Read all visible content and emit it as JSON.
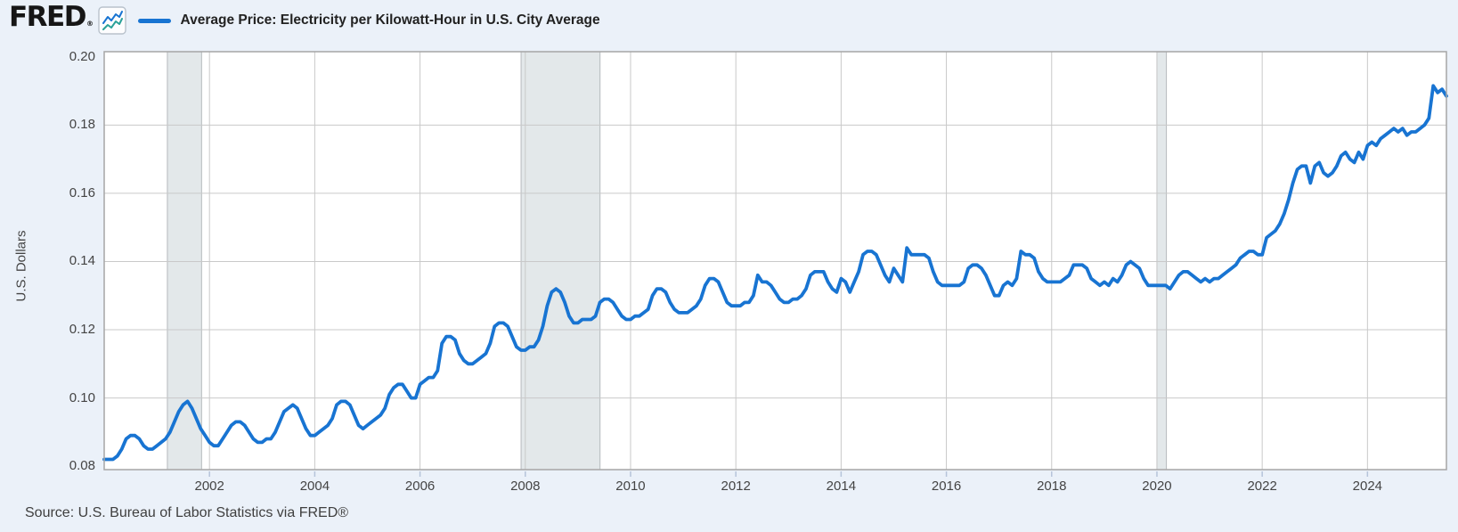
{
  "header": {
    "logo_text": "FRED",
    "logo_registered": "®",
    "legend_label": "Average Price: Electricity per Kilowatt-Hour in U.S. City Average"
  },
  "footer": {
    "source": "Source: U.S. Bureau of Labor Statistics via FRED®"
  },
  "colors": {
    "page_background": "#ebf1f9",
    "plot_background": "#ffffff",
    "series_line": "#1874d2",
    "gridline": "#c9c9c9",
    "plot_border": "#a6a6a6",
    "recession_fill": "#e3e8ea",
    "recession_edge": "#b5babd",
    "axis_text": "#444444",
    "tick_mark": "#b6c4da",
    "icon_line_blue": "#1874d2",
    "icon_line_teal": "#2aa198"
  },
  "chart_data": {
    "type": "line",
    "title": "Average Price: Electricity per Kilowatt-Hour in U.S. City Average",
    "ylabel": "U.S. Dollars",
    "legend_position": "top-left",
    "grid": true,
    "x_start_year": 2000.0,
    "x_end_year": 2025.5,
    "ylim": [
      0.079,
      0.2015
    ],
    "y_ticks": [
      0.08,
      0.1,
      0.12,
      0.14,
      0.16,
      0.18,
      0.2
    ],
    "x_ticks": [
      2002,
      2004,
      2006,
      2008,
      2010,
      2012,
      2014,
      2016,
      2018,
      2020,
      2022,
      2024
    ],
    "recession_bands_years": [
      [
        2001.2,
        2001.85
      ],
      [
        2007.92,
        2009.42
      ],
      [
        2020.0,
        2020.18
      ]
    ],
    "frequency": "monthly",
    "first_observation": "2000-01",
    "last_observation": "2025-07",
    "values": [
      0.082,
      0.082,
      0.082,
      0.083,
      0.085,
      0.088,
      0.089,
      0.089,
      0.088,
      0.086,
      0.085,
      0.085,
      0.086,
      0.087,
      0.088,
      0.09,
      0.093,
      0.096,
      0.098,
      0.099,
      0.097,
      0.094,
      0.091,
      0.089,
      0.087,
      0.086,
      0.086,
      0.088,
      0.09,
      0.092,
      0.093,
      0.093,
      0.092,
      0.09,
      0.088,
      0.087,
      0.087,
      0.088,
      0.088,
      0.09,
      0.093,
      0.096,
      0.097,
      0.098,
      0.097,
      0.094,
      0.091,
      0.089,
      0.089,
      0.09,
      0.091,
      0.092,
      0.094,
      0.098,
      0.099,
      0.099,
      0.098,
      0.095,
      0.092,
      0.091,
      0.092,
      0.093,
      0.094,
      0.095,
      0.097,
      0.101,
      0.103,
      0.104,
      0.104,
      0.102,
      0.1,
      0.1,
      0.104,
      0.105,
      0.106,
      0.106,
      0.108,
      0.116,
      0.118,
      0.118,
      0.117,
      0.113,
      0.111,
      0.11,
      0.11,
      0.111,
      0.112,
      0.113,
      0.116,
      0.121,
      0.122,
      0.122,
      0.121,
      0.118,
      0.115,
      0.114,
      0.114,
      0.115,
      0.115,
      0.117,
      0.121,
      0.127,
      0.131,
      0.132,
      0.131,
      0.128,
      0.124,
      0.122,
      0.122,
      0.123,
      0.123,
      0.123,
      0.124,
      0.128,
      0.129,
      0.129,
      0.128,
      0.126,
      0.124,
      0.123,
      0.123,
      0.124,
      0.124,
      0.125,
      0.126,
      0.13,
      0.132,
      0.132,
      0.131,
      0.128,
      0.126,
      0.125,
      0.125,
      0.125,
      0.126,
      0.127,
      0.129,
      0.133,
      0.135,
      0.135,
      0.134,
      0.131,
      0.128,
      0.127,
      0.127,
      0.127,
      0.128,
      0.128,
      0.13,
      0.136,
      0.134,
      0.134,
      0.133,
      0.131,
      0.129,
      0.128,
      0.128,
      0.129,
      0.129,
      0.13,
      0.132,
      0.136,
      0.137,
      0.137,
      0.137,
      0.134,
      0.132,
      0.131,
      0.135,
      0.134,
      0.131,
      0.134,
      0.137,
      0.142,
      0.143,
      0.143,
      0.142,
      0.139,
      0.136,
      0.134,
      0.138,
      0.136,
      0.134,
      0.144,
      0.142,
      0.142,
      0.142,
      0.142,
      0.141,
      0.137,
      0.134,
      0.133,
      0.133,
      0.133,
      0.133,
      0.133,
      0.134,
      0.138,
      0.139,
      0.139,
      0.138,
      0.136,
      0.133,
      0.13,
      0.13,
      0.133,
      0.134,
      0.133,
      0.135,
      0.143,
      0.142,
      0.142,
      0.141,
      0.137,
      0.135,
      0.134,
      0.134,
      0.134,
      0.134,
      0.135,
      0.136,
      0.139,
      0.139,
      0.139,
      0.138,
      0.135,
      0.134,
      0.133,
      0.134,
      0.133,
      0.135,
      0.134,
      0.136,
      0.139,
      0.14,
      0.139,
      0.138,
      0.135,
      0.133,
      0.133,
      0.133,
      0.133,
      0.133,
      0.132,
      0.134,
      0.136,
      0.137,
      0.137,
      0.136,
      0.135,
      0.134,
      0.135,
      0.134,
      0.135,
      0.135,
      0.136,
      0.137,
      0.138,
      0.139,
      0.141,
      0.142,
      0.143,
      0.143,
      0.142,
      0.142,
      0.147,
      0.148,
      0.149,
      0.151,
      0.154,
      0.158,
      0.163,
      0.167,
      0.168,
      0.168,
      0.163,
      0.168,
      0.169,
      0.166,
      0.165,
      0.166,
      0.168,
      0.171,
      0.172,
      0.17,
      0.169,
      0.172,
      0.17,
      0.174,
      0.175,
      0.174,
      0.176,
      0.177,
      0.178,
      0.179,
      0.178,
      0.179,
      0.177,
      0.178,
      0.178,
      0.179,
      0.18,
      0.182,
      0.1915,
      0.1895,
      0.1905,
      0.1885
    ]
  }
}
